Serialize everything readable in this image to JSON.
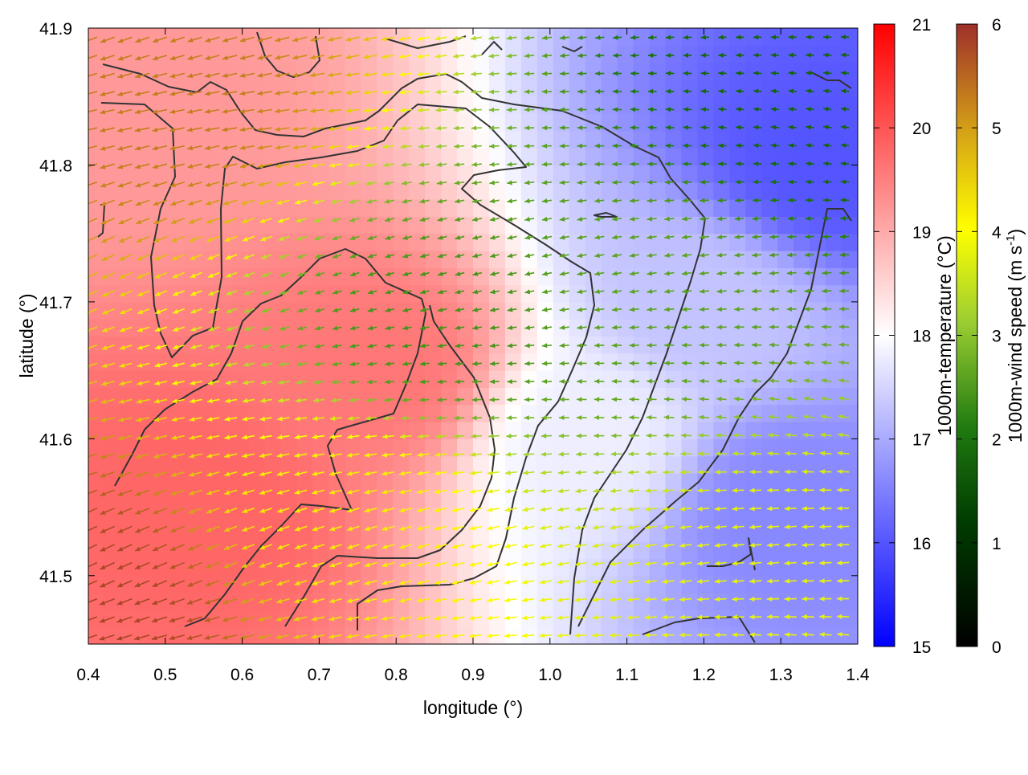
{
  "chart_data": {
    "type": "heatmap",
    "title": "",
    "xlabel": "longitude (°)",
    "ylabel": "latitude (°)",
    "xlim": [
      0.4,
      1.4
    ],
    "ylim": [
      41.45,
      41.9
    ],
    "x_ticks": [
      0.4,
      0.5,
      0.6,
      0.7,
      0.8,
      0.9,
      1.0,
      1.1,
      1.2,
      1.3,
      1.4
    ],
    "x_tick_labels": [
      "0.4",
      "0.5",
      "0.6",
      "0.7",
      "0.8",
      "0.9",
      "1.0",
      "1.1",
      "1.2",
      "1.3",
      "1.4"
    ],
    "y_ticks": [
      41.5,
      41.6,
      41.7,
      41.8,
      41.9
    ],
    "y_tick_labels": [
      "41.5",
      "41.6",
      "41.7",
      "41.8",
      "41.9"
    ],
    "grid": false,
    "heatmap_field": {
      "name": "1000m-temperature",
      "unit": "°C",
      "colorbar": {
        "label": "1000m-temperature (°C)",
        "range": [
          15,
          21
        ],
        "ticks": [
          15,
          16,
          17,
          18,
          19,
          20,
          21
        ],
        "tick_labels": [
          "15",
          "16",
          "17",
          "18",
          "19",
          "20",
          "21"
        ],
        "colors": [
          "#0000ff",
          "#ffffff",
          "#ff0000"
        ]
      },
      "approx_centers": [
        {
          "lon": 0.55,
          "lat": 41.55,
          "value": 19.8
        },
        {
          "lon": 0.78,
          "lat": 41.65,
          "value": 19.6
        },
        {
          "lon": 0.45,
          "lat": 41.85,
          "value": 19.2
        },
        {
          "lon": 1.05,
          "lat": 41.6,
          "value": 17.8
        },
        {
          "lon": 1.2,
          "lat": 41.7,
          "value": 17.3
        },
        {
          "lon": 1.35,
          "lat": 41.8,
          "value": 16.0
        },
        {
          "lon": 1.3,
          "lat": 41.55,
          "value": 16.6
        }
      ]
    },
    "vector_field": {
      "name": "1000m-wind",
      "unit": "m s-1",
      "colorbar": {
        "label_main": "1000m-wind speed (m s",
        "label_sup": "-1",
        "label_end": ")",
        "range": [
          0,
          6
        ],
        "ticks": [
          0,
          1,
          2,
          3,
          4,
          5,
          6
        ],
        "tick_labels": [
          "0",
          "1",
          "2",
          "3",
          "4",
          "5",
          "6"
        ],
        "colors": [
          "#000000",
          "#006400",
          "#9acd32",
          "#ffff00",
          "#daa520",
          "#a0302a"
        ]
      },
      "approx_speed_regions": [
        {
          "lon": 0.42,
          "lat": 41.48,
          "speed": 5.8
        },
        {
          "lon": 0.5,
          "lat": 41.85,
          "speed": 5.3
        },
        {
          "lon": 0.75,
          "lat": 41.55,
          "speed": 4.2
        },
        {
          "lon": 0.85,
          "lat": 41.68,
          "speed": 2.4
        },
        {
          "lon": 1.15,
          "lat": 41.7,
          "speed": 2.6
        },
        {
          "lon": 1.35,
          "lat": 41.85,
          "speed": 1.8
        },
        {
          "lon": 1.3,
          "lat": 41.5,
          "speed": 3.8
        }
      ]
    }
  },
  "colors": {
    "contour": "#333333",
    "axis": "#000000"
  }
}
